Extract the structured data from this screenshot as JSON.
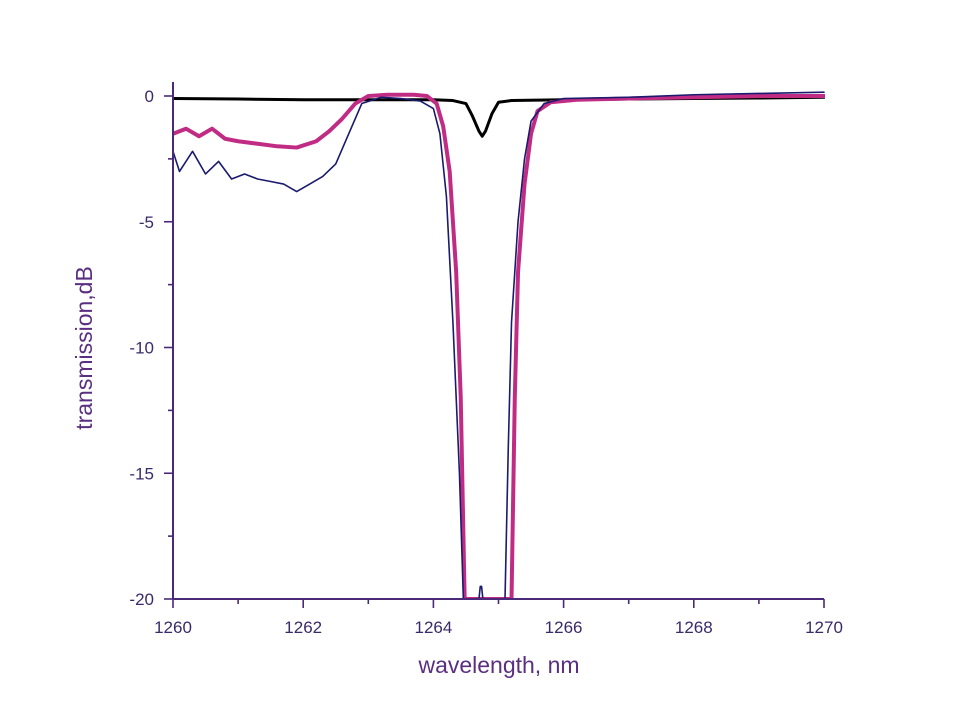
{
  "chart_data": {
    "type": "line",
    "title": "",
    "xlabel": "wavelength, nm",
    "ylabel": "transmission,dB",
    "xlim": [
      1260,
      1270
    ],
    "ylim": [
      -20,
      0
    ],
    "x_ticks": [
      1260,
      1262,
      1264,
      1266,
      1268,
      1270
    ],
    "y_ticks": [
      0,
      -5,
      -10,
      -15,
      -20
    ],
    "grid": false,
    "legend": "none",
    "colors": {
      "axis": "#4a2a78",
      "tick_label": "#3a2a6a",
      "axis_title": "#5a2f82"
    },
    "series": [
      {
        "color": "#000000",
        "width": 3,
        "x": [
          1260,
          1261,
          1262,
          1263,
          1264,
          1264.3,
          1264.5,
          1264.6,
          1264.7,
          1264.75,
          1264.8,
          1264.9,
          1265,
          1265.2,
          1266,
          1267,
          1268,
          1269,
          1270
        ],
        "values": [
          -0.1,
          -0.12,
          -0.15,
          -0.15,
          -0.15,
          -0.18,
          -0.3,
          -0.8,
          -1.4,
          -1.6,
          -1.4,
          -0.7,
          -0.25,
          -0.18,
          -0.15,
          -0.12,
          -0.1,
          -0.08,
          -0.05
        ]
      },
      {
        "color": "#c02c84",
        "width": 4,
        "x": [
          1260,
          1260.2,
          1260.4,
          1260.6,
          1260.8,
          1261,
          1261.3,
          1261.6,
          1261.9,
          1262.2,
          1262.4,
          1262.6,
          1262.8,
          1263,
          1263.3,
          1263.7,
          1263.9,
          1264.05,
          1264.15,
          1264.25,
          1264.35,
          1264.42,
          1264.48,
          1265.2,
          1265.25,
          1265.3,
          1265.4,
          1265.5,
          1265.6,
          1265.8,
          1266.2,
          1267,
          1268,
          1269,
          1270
        ],
        "values": [
          -1.5,
          -1.3,
          -1.6,
          -1.3,
          -1.7,
          -1.8,
          -1.9,
          -2.0,
          -2.05,
          -1.8,
          -1.4,
          -0.9,
          -0.3,
          0,
          0.05,
          0.05,
          0,
          -0.3,
          -1.2,
          -3,
          -7,
          -12,
          -20,
          -20,
          -12,
          -7,
          -3.5,
          -1.5,
          -0.6,
          -0.25,
          -0.15,
          -0.1,
          -0.05,
          0,
          0
        ]
      },
      {
        "color": "#1a1a6e",
        "width": 1.6,
        "x": [
          1260,
          1260.1,
          1260.3,
          1260.5,
          1260.7,
          1260.9,
          1261.1,
          1261.3,
          1261.5,
          1261.7,
          1261.9,
          1262.1,
          1262.3,
          1262.5,
          1262.7,
          1262.9,
          1263.2,
          1263.5,
          1263.8,
          1264.0,
          1264.1,
          1264.2,
          1264.3,
          1264.4,
          1264.46,
          1264.7,
          1264.72,
          1264.74,
          1264.76,
          1265.1,
          1265.15,
          1265.2,
          1265.3,
          1265.4,
          1265.5,
          1265.7,
          1266,
          1267,
          1268,
          1269,
          1270
        ],
        "values": [
          -2.2,
          -3.0,
          -2.2,
          -3.1,
          -2.6,
          -3.3,
          -3.1,
          -3.3,
          -3.4,
          -3.5,
          -3.8,
          -3.5,
          -3.2,
          -2.7,
          -1.5,
          -0.3,
          -0.05,
          -0.1,
          -0.2,
          -0.5,
          -1.5,
          -4,
          -9,
          -15,
          -20,
          -20,
          -19.5,
          -19.5,
          -20,
          -20,
          -14,
          -9,
          -5,
          -2.5,
          -1.0,
          -0.3,
          -0.1,
          -0.05,
          0.05,
          0.1,
          0.15
        ]
      }
    ]
  }
}
